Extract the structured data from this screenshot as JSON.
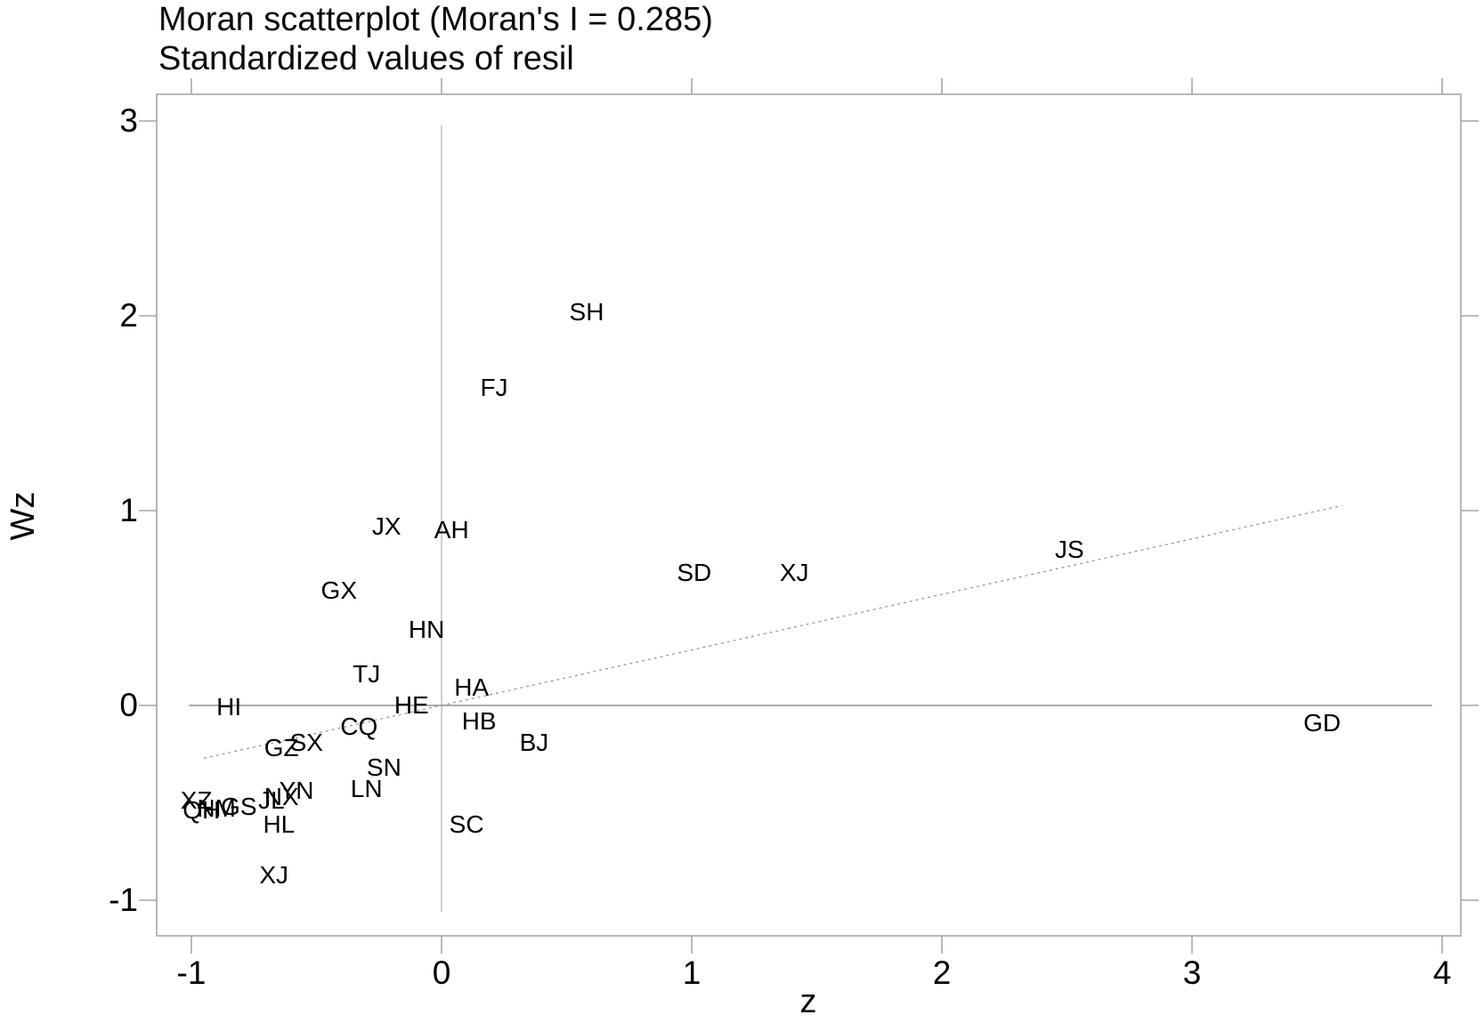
{
  "chart_data": {
    "type": "scatter",
    "title": "Moran scatterplot (Moran's I = 0.285)",
    "subtitle": "Standardized values of resil",
    "xlabel": "z",
    "ylabel": "Wz",
    "moran_i": 0.285,
    "x_ticks": [
      -1,
      0,
      1,
      2,
      3,
      4
    ],
    "y_ticks": [
      3,
      2,
      1,
      0,
      -1
    ],
    "xlim": [
      -1.14,
      4.07
    ],
    "ylim": [
      -1.18,
      3.14
    ],
    "grid": false,
    "legend": "none",
    "reference_lines": {
      "vertical": {
        "x": 0,
        "wz_min": -1.06,
        "wz_max": 2.98
      },
      "horizontal": {
        "wz": 0,
        "z_min": -1.01,
        "z_max": 3.96
      }
    },
    "trend_line": {
      "slope": 0.285,
      "intercept": 0,
      "z_start": -0.95,
      "z_end": 3.6,
      "style": "dotted"
    },
    "points": [
      {
        "label": "SH",
        "z": 0.58,
        "wz": 2.02
      },
      {
        "label": "FJ",
        "z": 0.21,
        "wz": 1.63
      },
      {
        "label": "JX",
        "z": -0.22,
        "wz": 0.92
      },
      {
        "label": "AH",
        "z": 0.04,
        "wz": 0.9
      },
      {
        "label": "GX",
        "z": -0.41,
        "wz": 0.59
      },
      {
        "label": "HN",
        "z": -0.06,
        "wz": 0.39
      },
      {
        "label": "TJ",
        "z": -0.3,
        "wz": 0.16
      },
      {
        "label": "HI",
        "z": -0.85,
        "wz": -0.01
      },
      {
        "label": "HE",
        "z": -0.12,
        "wz": 0.0
      },
      {
        "label": "HA",
        "z": 0.12,
        "wz": 0.09
      },
      {
        "label": "CQ",
        "z": -0.33,
        "wz": -0.11
      },
      {
        "label": "HB",
        "z": 0.15,
        "wz": -0.08
      },
      {
        "label": "BJ",
        "z": 0.37,
        "wz": -0.19
      },
      {
        "label": "SD",
        "z": 1.01,
        "wz": 0.68
      },
      {
        "label": "XJ",
        "z": 1.41,
        "wz": 0.68
      },
      {
        "label": "JS",
        "z": 2.51,
        "wz": 0.8
      },
      {
        "label": "GD",
        "z": 3.52,
        "wz": -0.09
      },
      {
        "label": "SX",
        "z": -0.54,
        "wz": -0.19
      },
      {
        "label": "GZ",
        "z": -0.64,
        "wz": -0.22
      },
      {
        "label": "SN",
        "z": -0.23,
        "wz": -0.32
      },
      {
        "label": "LN",
        "z": -0.3,
        "wz": -0.43
      },
      {
        "label": "YN",
        "z": -0.58,
        "wz": -0.44
      },
      {
        "label": "XZ",
        "z": -0.98,
        "wz": -0.49
      },
      {
        "label": "GS",
        "z": -0.81,
        "wz": -0.52
      },
      {
        "label": "QH",
        "z": -0.96,
        "wz": -0.54
      },
      {
        "label": "NM",
        "z": -0.9,
        "wz": -0.53
      },
      {
        "label": "JL",
        "z": -0.68,
        "wz": -0.49
      },
      {
        "label": "NX",
        "z": -0.64,
        "wz": -0.47
      },
      {
        "label": "HL",
        "z": -0.65,
        "wz": -0.61
      },
      {
        "label": "SC",
        "z": 0.1,
        "wz": -0.61
      },
      {
        "label": "XJ",
        "z": -0.67,
        "wz": -0.87
      }
    ],
    "colors": {
      "background": "#ffffff",
      "text": "#000000",
      "frame": "#a6a6a6",
      "zero_line_horizontal": "#8f8f8f",
      "zero_line_vertical": "#c4c4c4",
      "trend_line": "#999999"
    }
  }
}
